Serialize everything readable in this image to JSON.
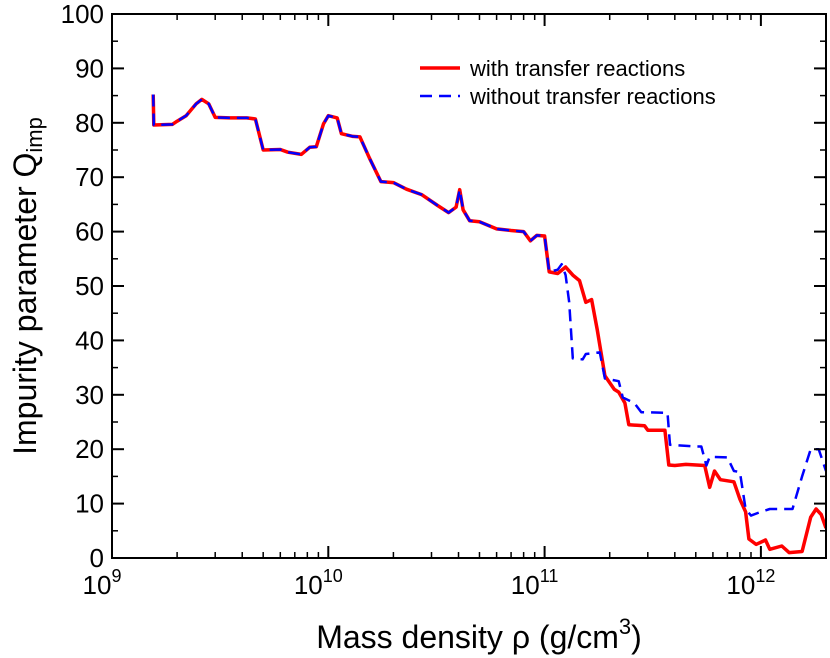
{
  "chart_data": {
    "type": "line",
    "xscale": "log",
    "xlabel": "Mass density ρ (g/cm",
    "xlabel_sup": "3",
    "xlabel_tail": ")",
    "ylabel": "Impurity parameter Q",
    "ylabel_sub": "imp",
    "xlim": [
      1000000000.0,
      2000000000000.0
    ],
    "ylim": [
      0,
      100
    ],
    "x_ticks": [
      {
        "value": 1000000000.0,
        "base": "10",
        "exp": "9"
      },
      {
        "value": 10000000000.0,
        "base": "10",
        "exp": "10"
      },
      {
        "value": 100000000000.0,
        "base": "10",
        "exp": "11"
      },
      {
        "value": 1000000000000.0,
        "base": "10",
        "exp": "12"
      }
    ],
    "y_ticks": [
      0,
      10,
      20,
      30,
      40,
      50,
      60,
      70,
      80,
      90,
      100
    ],
    "grid": false,
    "legend_position": "top-right",
    "series": [
      {
        "name": "with transfer reactions",
        "color": "#ff0000",
        "style": "solid",
        "points": [
          [
            1550000000.0,
            85.2
          ],
          [
            1560000000.0,
            79.6
          ],
          [
            1900000000.0,
            79.7
          ],
          [
            2000000000.0,
            80.3
          ],
          [
            2200000000.0,
            81.3
          ],
          [
            2450000000.0,
            83.5
          ],
          [
            2600000000.0,
            84.3
          ],
          [
            2800000000.0,
            83.5
          ],
          [
            3000000000.0,
            81.0
          ],
          [
            3500000000.0,
            80.9
          ],
          [
            4200000000.0,
            80.9
          ],
          [
            4600000000.0,
            80.7
          ],
          [
            5000000000.0,
            75.0
          ],
          [
            6000000000.0,
            75.1
          ],
          [
            6500000000.0,
            74.6
          ],
          [
            7500000000.0,
            74.2
          ],
          [
            8200000000.0,
            75.5
          ],
          [
            8800000000.0,
            75.6
          ],
          [
            9500000000.0,
            79.8
          ],
          [
            10000000000.0,
            81.3
          ],
          [
            11000000000.0,
            80.9
          ],
          [
            11500000000.0,
            78.0
          ],
          [
            13000000000.0,
            77.5
          ],
          [
            14000000000.0,
            77.4
          ],
          [
            15500000000.0,
            73.5
          ],
          [
            17500000000.0,
            69.2
          ],
          [
            20000000000.0,
            69.0
          ],
          [
            23000000000.0,
            67.8
          ],
          [
            27000000000.0,
            66.8
          ],
          [
            32000000000.0,
            64.8
          ],
          [
            36000000000.0,
            63.5
          ],
          [
            39000000000.0,
            64.5
          ],
          [
            40500000000.0,
            67.7
          ],
          [
            42000000000.0,
            64.0
          ],
          [
            45000000000.0,
            62.0
          ],
          [
            50000000000.0,
            61.8
          ],
          [
            60000000000.0,
            60.5
          ],
          [
            70000000000.0,
            60.2
          ],
          [
            80000000000.0,
            60.0
          ],
          [
            86000000000.0,
            58.3
          ],
          [
            92000000000.0,
            59.3
          ],
          [
            100000000000.0,
            59.2
          ],
          [
            105000000000.0,
            52.6
          ],
          [
            115000000000.0,
            52.3
          ],
          [
            125000000000.0,
            53.5
          ],
          [
            135000000000.0,
            52.0
          ],
          [
            145000000000.0,
            51.0
          ],
          [
            155000000000.0,
            47.0
          ],
          [
            165000000000.0,
            47.5
          ],
          [
            175000000000.0,
            42.0
          ],
          [
            190000000000.0,
            33.5
          ],
          [
            210000000000.0,
            31.0
          ],
          [
            220000000000.0,
            30.5
          ],
          [
            235000000000.0,
            28.5
          ],
          [
            245000000000.0,
            24.5
          ],
          [
            290000000000.0,
            24.3
          ],
          [
            300000000000.0,
            23.5
          ],
          [
            360000000000.0,
            23.5
          ],
          [
            375000000000.0,
            17.1
          ],
          [
            400000000000.0,
            17.0
          ],
          [
            450000000000.0,
            17.2
          ],
          [
            550000000000.0,
            17.0
          ],
          [
            580000000000.0,
            13.0
          ],
          [
            610000000000.0,
            16.0
          ],
          [
            650000000000.0,
            14.4
          ],
          [
            750000000000.0,
            14.0
          ],
          [
            800000000000.0,
            10.8
          ],
          [
            850000000000.0,
            8.5
          ],
          [
            880000000000.0,
            3.5
          ],
          [
            950000000000.0,
            2.5
          ],
          [
            1050000000000.0,
            3.3
          ],
          [
            1100000000000.0,
            1.6
          ],
          [
            1250000000000.0,
            2.2
          ],
          [
            1350000000000.0,
            1.0
          ],
          [
            1550000000000.0,
            1.2
          ],
          [
            1700000000000.0,
            7.5
          ],
          [
            1800000000000.0,
            9.0
          ],
          [
            1900000000000.0,
            8.0
          ],
          [
            2000000000000.0,
            5.5
          ]
        ]
      },
      {
        "name": "without transfer reactions",
        "color": "#0000ff",
        "style": "dashed",
        "points": [
          [
            1550000000.0,
            85.2
          ],
          [
            1560000000.0,
            79.6
          ],
          [
            1900000000.0,
            79.7
          ],
          [
            2000000000.0,
            80.3
          ],
          [
            2200000000.0,
            81.3
          ],
          [
            2450000000.0,
            83.5
          ],
          [
            2600000000.0,
            84.3
          ],
          [
            2800000000.0,
            83.5
          ],
          [
            3000000000.0,
            81.0
          ],
          [
            3500000000.0,
            80.9
          ],
          [
            4200000000.0,
            80.9
          ],
          [
            4600000000.0,
            80.7
          ],
          [
            5000000000.0,
            75.0
          ],
          [
            6000000000.0,
            75.1
          ],
          [
            6500000000.0,
            74.6
          ],
          [
            7500000000.0,
            74.2
          ],
          [
            8200000000.0,
            75.5
          ],
          [
            8800000000.0,
            75.6
          ],
          [
            9500000000.0,
            79.8
          ],
          [
            10000000000.0,
            81.3
          ],
          [
            11000000000.0,
            80.9
          ],
          [
            11500000000.0,
            78.0
          ],
          [
            13000000000.0,
            77.5
          ],
          [
            14000000000.0,
            77.4
          ],
          [
            15500000000.0,
            73.5
          ],
          [
            17500000000.0,
            69.2
          ],
          [
            20000000000.0,
            69.0
          ],
          [
            23000000000.0,
            67.8
          ],
          [
            27000000000.0,
            66.8
          ],
          [
            32000000000.0,
            64.8
          ],
          [
            36000000000.0,
            63.5
          ],
          [
            39000000000.0,
            64.5
          ],
          [
            40500000000.0,
            67.7
          ],
          [
            42000000000.0,
            64.0
          ],
          [
            45000000000.0,
            62.0
          ],
          [
            50000000000.0,
            61.8
          ],
          [
            60000000000.0,
            60.5
          ],
          [
            70000000000.0,
            60.2
          ],
          [
            80000000000.0,
            60.0
          ],
          [
            86000000000.0,
            58.3
          ],
          [
            92000000000.0,
            59.3
          ],
          [
            100000000000.0,
            59.2
          ],
          [
            105000000000.0,
            52.6
          ],
          [
            115000000000.0,
            53.0
          ],
          [
            120000000000.0,
            54.0
          ],
          [
            125000000000.0,
            52.0
          ],
          [
            130000000000.0,
            47.0
          ],
          [
            135000000000.0,
            36.7
          ],
          [
            150000000000.0,
            36.5
          ],
          [
            155000000000.0,
            37.5
          ],
          [
            180000000000.0,
            37.8
          ],
          [
            190000000000.0,
            33.0
          ],
          [
            220000000000.0,
            32.5
          ],
          [
            230000000000.0,
            29.5
          ],
          [
            260000000000.0,
            28.5
          ],
          [
            280000000000.0,
            26.8
          ],
          [
            370000000000.0,
            26.7
          ],
          [
            380000000000.0,
            20.8
          ],
          [
            500000000000.0,
            20.5
          ],
          [
            530000000000.0,
            20.5
          ],
          [
            560000000000.0,
            17.0
          ],
          [
            580000000000.0,
            18.6
          ],
          [
            700000000000.0,
            18.5
          ],
          [
            750000000000.0,
            16.0
          ],
          [
            800000000000.0,
            15.8
          ],
          [
            850000000000.0,
            9.0
          ],
          [
            900000000000.0,
            7.8
          ],
          [
            1000000000000.0,
            8.5
          ],
          [
            1100000000000.0,
            9.0
          ],
          [
            1400000000000.0,
            9.0
          ],
          [
            1550000000000.0,
            15.0
          ],
          [
            1700000000000.0,
            20.0
          ],
          [
            1850000000000.0,
            20.0
          ],
          [
            2000000000000.0,
            16.0
          ]
        ]
      }
    ]
  }
}
